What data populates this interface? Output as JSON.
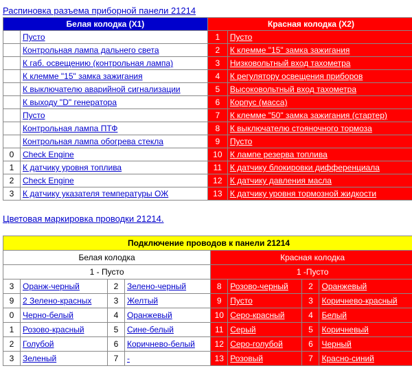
{
  "title1": "Распиновка разъема приборной панели 21214",
  "title2": "Цветовая маркировка проводки 21214.",
  "colors": {
    "blue": "#0000cc",
    "red": "#ff0000",
    "yellow": "#ffff00",
    "white": "#ffffff",
    "black": "#000000",
    "border": "#888888"
  },
  "table1": {
    "header_left": "Белая колодка (X1)",
    "header_right": "Красная колодка (X2)",
    "font_size": 12,
    "rows": [
      {
        "ln": "",
        "left": "Пусто",
        "rn": "1",
        "right": "Пусто"
      },
      {
        "ln": "",
        "left": "Контрольная лампа дальнего света",
        "rn": "2",
        "right": "К клемме \"15\" замка зажигания"
      },
      {
        "ln": "",
        "left": "К габ. освещению (контрольная лампа)",
        "rn": "3",
        "right": "Низковольтный вход тахометра"
      },
      {
        "ln": "",
        "left": "К клемме \"15\" замка зажигания",
        "rn": "4",
        "right": "К регулятору освещения приборов"
      },
      {
        "ln": "",
        "left": "К выключателю аварийной сигнализации",
        "rn": "5",
        "right": "Высоковольтный вход тахометра"
      },
      {
        "ln": "",
        "left": "К выходу \"D\" генератора",
        "rn": "6",
        "right": "Корпус (масса)"
      },
      {
        "ln": "",
        "left": "Пусто",
        "rn": "7",
        "right": "К клемме \"50\" замка зажигания (стартер)"
      },
      {
        "ln": "",
        "left": "Контрольная лампа ПТФ",
        "rn": "8",
        "right": "К выключателю стояночного тормоза"
      },
      {
        "ln": "",
        "left": "Контрольная лампа обогрева стекла",
        "rn": "9",
        "right": "Пусто"
      },
      {
        "ln": "0",
        "left": "Check Engine",
        "rn": "10",
        "right": "К лампе резерва топлива"
      },
      {
        "ln": "1",
        "left": "К датчику уровня топлива",
        "rn": "11",
        "right": "К датчику блокировки дифференциала"
      },
      {
        "ln": "2",
        "left": "Check Engine",
        "rn": "12",
        "right": "К датчику давления масла"
      },
      {
        "ln": "3",
        "left": "К датчику указателя температуры ОЖ",
        "rn": "13",
        "right": "К датчику уровня тормозной жидкости"
      }
    ]
  },
  "table2": {
    "header": "Подключение проводов к панели 21214",
    "sub_left": "Белая колодка",
    "sub_right": "Красная колодка",
    "empty_left": "1 - Пусто",
    "empty_right": "1 -Пусто",
    "font_size": 12,
    "rows": [
      {
        "a": "3",
        "b": "Оранж-черный",
        "c": "2",
        "d": "Зелено-черный",
        "e": "8",
        "f": "Розово-черный",
        "g": "2",
        "h": "Оранжевый"
      },
      {
        "a": "9",
        "b": "2 Зелено-красных",
        "c": "3",
        "d": "Желтый",
        "e": "9",
        "f": "Пусто",
        "g": "3",
        "h": "Коричнево-красный"
      },
      {
        "a": "0",
        "b": "Черно-белый",
        "c": "4",
        "d": "Оранжевый",
        "e": "10",
        "f": "Серо-красный",
        "g": "4",
        "h": "Белый"
      },
      {
        "a": "1",
        "b": "Розово-красный",
        "c": "5",
        "d": "Сине-белый",
        "e": "11",
        "f": "Серый",
        "g": "5",
        "h": "Коричневый"
      },
      {
        "a": "2",
        "b": "Голубой",
        "c": "6",
        "d": "Коричнево-белый",
        "e": "12",
        "f": "Серо-голубой",
        "g": "6",
        "h": "Черный"
      },
      {
        "a": "3",
        "b": "Зеленый",
        "c": "7",
        "d": "-",
        "e": "13",
        "f": "Розовый",
        "g": "7",
        "h": "Красно-синий"
      }
    ]
  }
}
